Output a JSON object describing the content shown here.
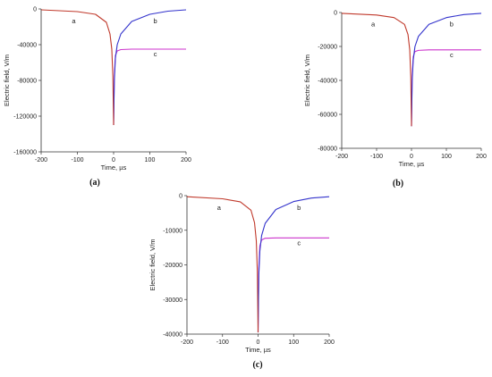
{
  "chart_data": [
    {
      "type": "line",
      "panel_label": "(a)",
      "xlabel": "Time, µs",
      "ylabel": "Electric field, V/m",
      "xlim": [
        -200,
        200
      ],
      "ylim": [
        -160000,
        0
      ],
      "xticks": [
        -200,
        -100,
        0,
        100,
        200
      ],
      "yticks": [
        0,
        -40000,
        -80000,
        -120000,
        -160000
      ],
      "peak": -130000,
      "plateau_c": -45000,
      "series": [
        {
          "name": "a",
          "color": "#c0392b",
          "x": [
            -200,
            -100,
            -50,
            -20,
            -10,
            -5,
            -2,
            0
          ],
          "y": [
            -1000,
            -3000,
            -6000,
            -15000,
            -28000,
            -45000,
            -75000,
            -130000
          ]
        },
        {
          "name": "b",
          "color": "#3333cc",
          "x": [
            0,
            2,
            5,
            10,
            20,
            50,
            100,
            150,
            200
          ],
          "y": [
            -130000,
            -80000,
            -55000,
            -40000,
            -28000,
            -14000,
            -6000,
            -2500,
            -1000
          ]
        },
        {
          "name": "c",
          "color": "#cc33cc",
          "x": [
            0,
            2,
            5,
            10,
            20,
            50,
            100,
            150,
            200
          ],
          "y": [
            -130000,
            -75000,
            -52000,
            -47000,
            -45500,
            -45000,
            -45000,
            -45000,
            -45000
          ]
        }
      ]
    },
    {
      "type": "line",
      "panel_label": "(b)",
      "xlabel": "Time, µs",
      "ylabel": "Electric field, V/m",
      "xlim": [
        -200,
        200
      ],
      "ylim": [
        -80000,
        0
      ],
      "xticks": [
        -200,
        -100,
        0,
        100,
        200
      ],
      "yticks": [
        0,
        -20000,
        -40000,
        -60000,
        -80000
      ],
      "peak": -67000,
      "plateau_c": -22000,
      "series": [
        {
          "name": "a",
          "color": "#c0392b",
          "x": [
            -200,
            -100,
            -50,
            -20,
            -10,
            -5,
            -2,
            0
          ],
          "y": [
            -500,
            -1500,
            -3000,
            -7000,
            -13000,
            -22000,
            -38000,
            -67000
          ]
        },
        {
          "name": "b",
          "color": "#3333cc",
          "x": [
            0,
            2,
            5,
            10,
            20,
            50,
            100,
            150,
            200
          ],
          "y": [
            -67000,
            -40000,
            -28000,
            -20000,
            -14000,
            -7000,
            -3000,
            -1200,
            -500
          ]
        },
        {
          "name": "c",
          "color": "#cc33cc",
          "x": [
            0,
            2,
            5,
            10,
            20,
            50,
            100,
            150,
            200
          ],
          "y": [
            -67000,
            -37000,
            -26000,
            -23000,
            -22300,
            -22000,
            -22000,
            -22000,
            -22000
          ]
        }
      ]
    },
    {
      "type": "line",
      "panel_label": "(c)",
      "xlabel": "Time, µs",
      "ylabel": "Electric field, V/m",
      "xlim": [
        -200,
        200
      ],
      "ylim": [
        -40000,
        0
      ],
      "xticks": [
        -200,
        -100,
        0,
        100,
        200
      ],
      "yticks": [
        0,
        -10000,
        -20000,
        -30000,
        -40000
      ],
      "peak": -39500,
      "plateau_c": -12200,
      "series": [
        {
          "name": "a",
          "color": "#c0392b",
          "x": [
            -200,
            -100,
            -50,
            -20,
            -10,
            -5,
            -2,
            0
          ],
          "y": [
            -300,
            -900,
            -1800,
            -4200,
            -7800,
            -13000,
            -22000,
            -39500
          ]
        },
        {
          "name": "b",
          "color": "#3333cc",
          "x": [
            0,
            2,
            5,
            10,
            20,
            50,
            100,
            150,
            200
          ],
          "y": [
            -39500,
            -23000,
            -16000,
            -11500,
            -8000,
            -4000,
            -1700,
            -700,
            -300
          ]
        },
        {
          "name": "c",
          "color": "#cc33cc",
          "x": [
            0,
            2,
            5,
            10,
            20,
            50,
            100,
            150,
            200
          ],
          "y": [
            -39500,
            -21000,
            -14500,
            -12800,
            -12300,
            -12200,
            -12200,
            -12200,
            -12200
          ]
        }
      ]
    }
  ]
}
